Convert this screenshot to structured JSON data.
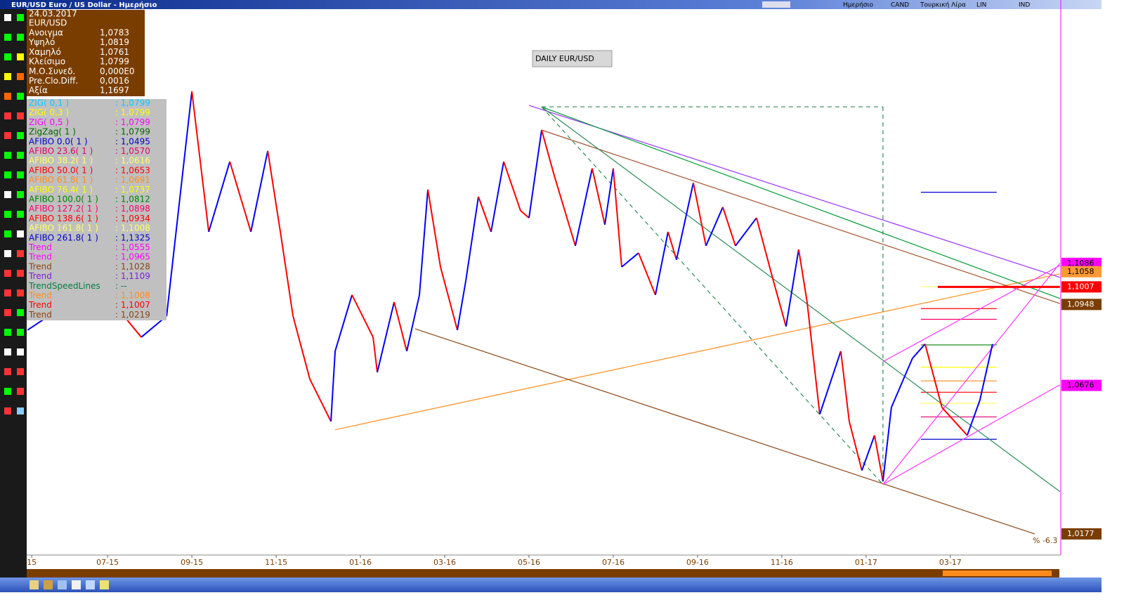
{
  "window": {
    "title": "EUR/USD Euro / US Dollar - Ημερήσιο",
    "toolbar_labels": [
      "Ημερήσιο",
      "CAND",
      "Τουρκική Λίρα",
      "LIN",
      "IND"
    ]
  },
  "info_panel": {
    "date": "24.03.2017",
    "symbol": "EUR/USD",
    "rows": [
      {
        "label": "Ανοιγμα",
        "value": "1,0783"
      },
      {
        "label": "Υψηλό",
        "value": "1,0819"
      },
      {
        "label": "Χαμηλό",
        "value": "1,0761"
      },
      {
        "label": "Κλείσιμο",
        "value": "1,0799"
      },
      {
        "label": "Μ.Ο.Συνεδ.",
        "value": "0,000E0"
      },
      {
        "label": "Pre.Clo.Diff.",
        "value": "0,0016"
      },
      {
        "label": "Αξία",
        "value": "1,1697"
      }
    ]
  },
  "legend": [
    {
      "name": "ZIG( 0,1 )",
      "value": ": 1,0799",
      "color": "#00ccff"
    },
    {
      "name": "ZIG( 0,3 )",
      "value": ": 1,0799",
      "color": "#ffff00"
    },
    {
      "name": "ZIG( 0,5 )",
      "value": ": 1,0799",
      "color": "#ff00ff"
    },
    {
      "name": "ZigZag( 1 )",
      "value": ": 1,0799",
      "color": "#006600"
    },
    {
      "name": "AFIBO 0.0( 1 )",
      "value": ": 1,0495",
      "color": "#0000cc"
    },
    {
      "name": "AFIBO 23.6( 1 )",
      "value": ": 1,0570",
      "color": "#e0006b"
    },
    {
      "name": "AFIBO 38.2( 1 )",
      "value": ": 1,0616",
      "color": "#ffff66"
    },
    {
      "name": "AFIBO 50.0( 1 )",
      "value": ": 1,0653",
      "color": "#ff0000"
    },
    {
      "name": "AFIBO 61.8( 1 )",
      "value": ": 1,0691",
      "color": "#ff8c1a"
    },
    {
      "name": "AFIBO 76.4( 1 )",
      "value": ": 1,0737",
      "color": "#ffff00"
    },
    {
      "name": "AFIBO 100.0( 1 )",
      "value": ": 1,0812",
      "color": "#008000"
    },
    {
      "name": "AFIBO 127.2( 1 )",
      "value": ": 1,0898",
      "color": "#ff0066"
    },
    {
      "name": "AFIBO 138.6( 1 )",
      "value": ": 1,0934",
      "color": "#ff0000"
    },
    {
      "name": "AFIBO 161.8( 1 )",
      "value": ": 1,1008",
      "color": "#ffff66"
    },
    {
      "name": "AFIBO 261.8( 1 )",
      "value": ": 1,1325",
      "color": "#0000cc"
    },
    {
      "name": "Trend",
      "value": ": 1,0555",
      "color": "#ff00ff"
    },
    {
      "name": "Trend",
      "value": ": 1,0965",
      "color": "#ff00ff"
    },
    {
      "name": "Trend",
      "value": ": 1,1028",
      "color": "#8b4513"
    },
    {
      "name": "Trend",
      "value": ": 1,1109",
      "color": "#7a1fd6"
    },
    {
      "name": "TrendSpeedLines",
      "value": ": --",
      "color": "#008040"
    },
    {
      "name": "Trend",
      "value": ": 1,1008",
      "color": "#ff8c1a"
    },
    {
      "name": "Trend",
      "value": ": 1,1007",
      "color": "#ff0000"
    },
    {
      "name": "Trend",
      "value": ": 1,0219",
      "color": "#8b4513"
    }
  ],
  "chart_data": {
    "type": "line",
    "title": "DAILY EUR/USD",
    "note": "% -6.3",
    "xlim": [
      -1.92,
      22.62
    ],
    "ylim": [
      1.0106,
      1.1938
    ],
    "xticks": [
      {
        "value": -1.8,
        "label": "15"
      },
      {
        "value": 0,
        "label": "07-15"
      },
      {
        "value": 2,
        "label": "09-15"
      },
      {
        "value": 4,
        "label": "11-15"
      },
      {
        "value": 6,
        "label": "01-16"
      },
      {
        "value": 8,
        "label": "03-16"
      },
      {
        "value": 10,
        "label": "05-16"
      },
      {
        "value": 12,
        "label": "07-16"
      },
      {
        "value": 14,
        "label": "09-16"
      },
      {
        "value": 16,
        "label": "11-16"
      },
      {
        "value": 18,
        "label": "01-17"
      },
      {
        "value": 20,
        "label": "03-17"
      }
    ],
    "yticks": [
      {
        "value": 1.1086,
        "label": "1,1086",
        "bg": "#ff00ff",
        "fg": "#000000"
      },
      {
        "value": 1.1058,
        "label": "1,1058",
        "bg": "#ff9933",
        "fg": "#000000"
      },
      {
        "value": 1.1007,
        "label": "1,1007",
        "bg": "#ff0000",
        "fg": "#ffffff"
      },
      {
        "value": 1.0948,
        "label": "1,0948",
        "bg": "#7a3d00",
        "fg": "#ffffff"
      },
      {
        "value": 1.0676,
        "label": "1,0676",
        "bg": "#ff00ff",
        "fg": "#000000"
      },
      {
        "value": 1.0177,
        "label": "1,0177",
        "bg": "#7a3d00",
        "fg": "#ffffff"
      }
    ],
    "up_color": "#0000ff",
    "down_color": "#ff0000",
    "x": [
      -1.9,
      -0.9,
      -0.3,
      0.8,
      1.4,
      2.0,
      2.4,
      2.9,
      3.4,
      3.8,
      4.1,
      4.4,
      4.8,
      5.3,
      5.4,
      5.8,
      6.3,
      6.4,
      6.8,
      7.1,
      7.4,
      7.6,
      7.9,
      8.3,
      8.5,
      8.8,
      9.1,
      9.4,
      9.8,
      10.0,
      10.3,
      10.6,
      11.1,
      11.5,
      11.8,
      12.0,
      12.2,
      12.6,
      13.0,
      13.3,
      13.5,
      13.9,
      14.2,
      14.6,
      14.9,
      15.4,
      15.8,
      16.1,
      16.4,
      16.6,
      16.9,
      17.4,
      17.6,
      17.9,
      18.2,
      18.4,
      18.6,
      19.1,
      19.4,
      19.8,
      20.4,
      20.7,
      21.0
    ],
    "close": [
      1.0862,
      1.0956,
      1.1027,
      1.0838,
      1.0909,
      1.1664,
      1.1192,
      1.1428,
      1.1192,
      1.1464,
      1.1192,
      1.0909,
      1.0697,
      1.0555,
      1.0791,
      1.098,
      1.0838,
      1.072,
      1.0956,
      1.0791,
      1.098,
      1.1334,
      1.1074,
      1.0862,
      1.1027,
      1.131,
      1.1192,
      1.1428,
      1.1263,
      1.1239,
      1.1534,
      1.1381,
      1.1145,
      1.1405,
      1.1216,
      1.1405,
      1.1074,
      1.1121,
      1.098,
      1.1192,
      1.1098,
      1.1357,
      1.1145,
      1.1275,
      1.1145,
      1.1239,
      1.1027,
      1.0874,
      1.1133,
      1.0956,
      1.0579,
      1.0791,
      1.0555,
      1.039,
      1.0508,
      1.0354,
      1.0602,
      1.0767,
      1.0815,
      1.0602,
      1.0508,
      1.0626,
      1.0815
    ],
    "lines": [
      {
        "color": "#ff8c1a",
        "points": [
          5.4,
          1.0527,
          22.6,
          1.1051
        ]
      },
      {
        "color": "#8b4513",
        "points": [
          7.3,
          1.0866,
          22.0,
          1.0177
        ]
      },
      {
        "color": "#9933ff",
        "points": [
          10.0,
          1.1617,
          22.6,
          1.1039
        ]
      },
      {
        "color": "#009933",
        "points": [
          10.3,
          1.1612,
          22.6,
          1.0968
        ]
      },
      {
        "color": "#a0522d",
        "points": [
          10.3,
          1.1534,
          22.6,
          1.0951
        ]
      },
      {
        "color": "#2e8b57",
        "points": [
          10.3,
          1.1612,
          22.6,
          1.0319
        ]
      },
      {
        "color": "#2e8b57",
        "dashed": true,
        "points": [
          10.3,
          1.1612,
          18.4,
          1.0343
        ]
      },
      {
        "color": "#2e8b57",
        "dashed": true,
        "points": [
          10.3,
          1.1612,
          18.4,
          1.1612
        ]
      },
      {
        "color": "#2e8b57",
        "dashed": true,
        "points": [
          18.4,
          1.1612,
          18.4,
          1.0343
        ]
      },
      {
        "color": "#ff33ff",
        "points": [
          18.4,
          1.0343,
          22.6,
          1.0678
        ]
      },
      {
        "color": "#ff33ff",
        "points": [
          18.4,
          1.0756,
          22.6,
          1.1079
        ]
      },
      {
        "color": "#ff33ff",
        "points": [
          18.4,
          1.0343,
          22.6,
          1.1086
        ]
      },
      {
        "color": "#ff0000",
        "width": 3,
        "points": [
          19.7,
          1.1007,
          22.6,
          1.1007
        ]
      }
    ],
    "levels": [
      {
        "value": 1.0495,
        "color": "#0000cc"
      },
      {
        "value": 1.057,
        "color": "#e0006b"
      },
      {
        "value": 1.0616,
        "color": "#ffff66"
      },
      {
        "value": 1.0653,
        "color": "#ff0000"
      },
      {
        "value": 1.0691,
        "color": "#ff8c1a"
      },
      {
        "value": 1.0737,
        "color": "#ffff00"
      },
      {
        "value": 1.0812,
        "color": "#008000"
      },
      {
        "value": 1.0898,
        "color": "#ff0066"
      },
      {
        "value": 1.0934,
        "color": "#ff0000"
      },
      {
        "value": 1.1008,
        "color": "#ffff66"
      },
      {
        "value": 1.1325,
        "color": "#0000cc"
      }
    ],
    "levels_x": [
      19.3,
      21.1
    ]
  }
}
